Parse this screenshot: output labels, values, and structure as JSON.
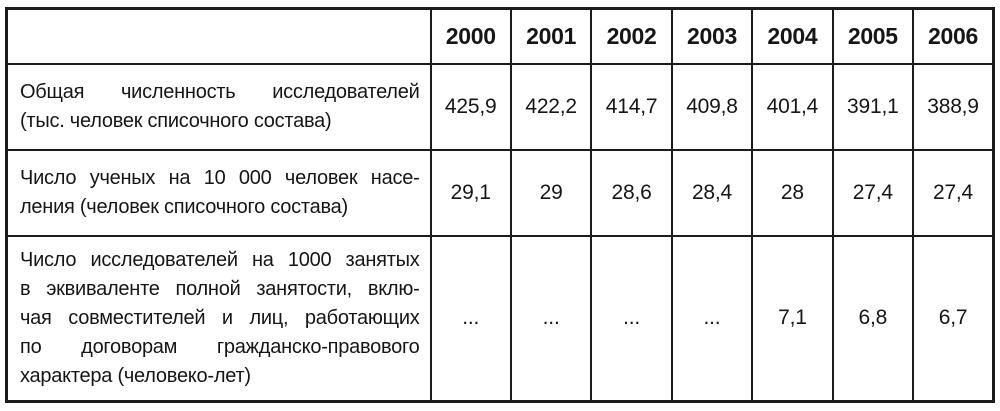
{
  "page": {
    "background_color": "#ffffff",
    "border_color": "#1b1b1b",
    "text_color": "#161616"
  },
  "table": {
    "corner_label": "",
    "years": [
      "2000",
      "2001",
      "2002",
      "2003",
      "2004",
      "2005",
      "2006"
    ],
    "rows": [
      {
        "label_lines": [
          "Общая численность исследователей",
          "(тыс. человек списочного состава)"
        ],
        "values": [
          "425,9",
          "422,2",
          "414,7",
          "409,8",
          "401,4",
          "391,1",
          "388,9"
        ]
      },
      {
        "label_lines": [
          "Число ученых на 10 000 человек насе-",
          "ления (человек списочного состава)"
        ],
        "values": [
          "29,1",
          "29",
          "28,6",
          "28,4",
          "28",
          "27,4",
          "27,4"
        ]
      },
      {
        "label_lines": [
          "Число исследователей на 1000 занятых",
          "в эквиваленте полной занятости, вклю-",
          "чая совместителей и лиц, работающих",
          "по договорам гражданско-правового",
          "характера (человеко-лет)"
        ],
        "values": [
          "...",
          "...",
          "...",
          "...",
          "7,1",
          "6,8",
          "6,7"
        ]
      }
    ]
  }
}
